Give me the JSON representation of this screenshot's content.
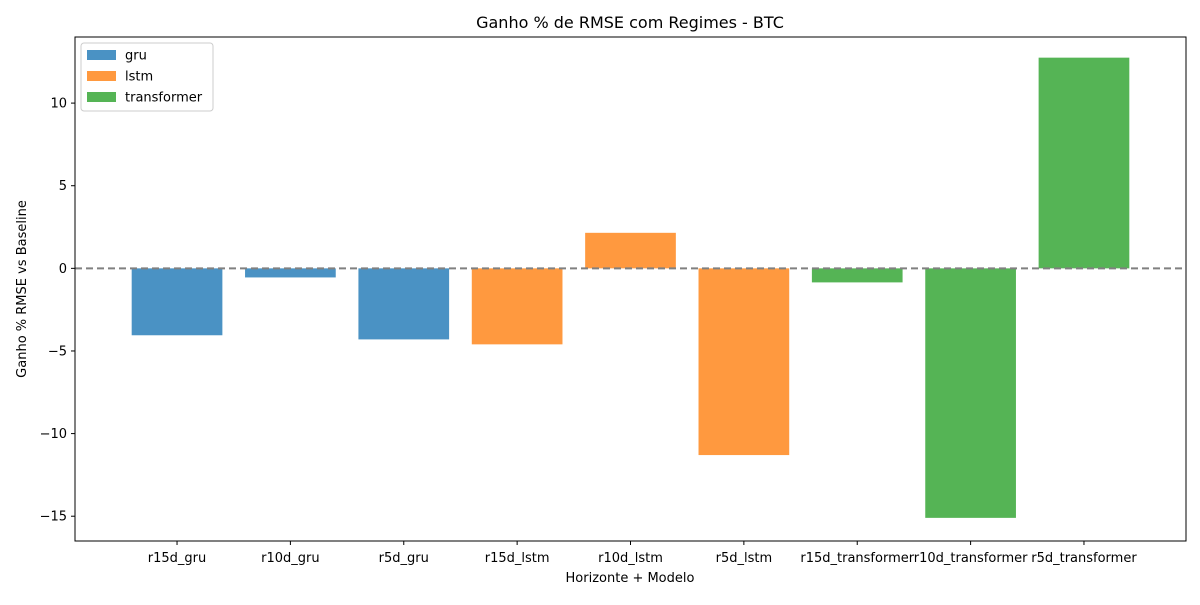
{
  "chart_data": {
    "type": "bar",
    "title": "Ganho % de RMSE com Regimes - BTC",
    "xlabel": "Horizonte + Modelo",
    "ylabel": "Ganho % RMSE vs Baseline",
    "ylim": [
      -16.5,
      14
    ],
    "yticks": [
      {
        "value": -15,
        "label": "−15"
      },
      {
        "value": -10,
        "label": "−10"
      },
      {
        "value": -5,
        "label": "−5"
      },
      {
        "value": 0,
        "label": "0"
      },
      {
        "value": 5,
        "label": "5"
      },
      {
        "value": 10,
        "label": "10"
      }
    ],
    "categories": [
      "r15d_gru",
      "r10d_gru",
      "r5d_gru",
      "r15d_lstm",
      "r10d_lstm",
      "r5d_lstm",
      "r15d_transformer",
      "r10d_transformer",
      "r5d_transformer"
    ],
    "values": [
      -4.05,
      -0.55,
      -4.3,
      -4.6,
      2.15,
      -11.3,
      -0.85,
      -15.1,
      12.75
    ],
    "bar_series": [
      "gru",
      "gru",
      "gru",
      "lstm",
      "lstm",
      "lstm",
      "transformer",
      "transformer",
      "transformer"
    ],
    "series": [
      {
        "name": "gru",
        "color": "#4a92c4"
      },
      {
        "name": "lstm",
        "color": "#ff993f"
      },
      {
        "name": "transformer",
        "color": "#55b455"
      }
    ],
    "reference_line": {
      "value": 0,
      "color": "#808080",
      "style": "dashed"
    },
    "grid": false,
    "legend_position": "top-left"
  }
}
